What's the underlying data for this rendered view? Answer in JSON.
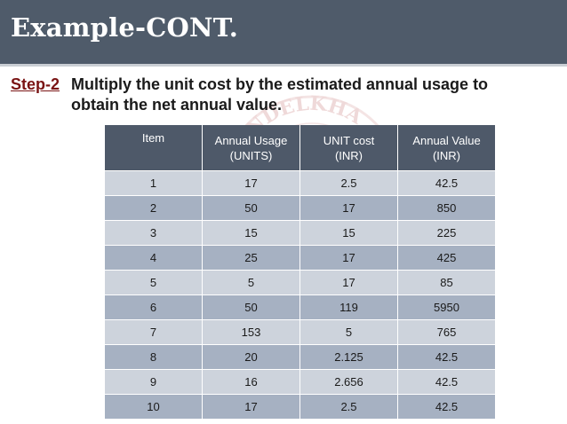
{
  "slide": {
    "title": "Example-CONT.",
    "step_label": "Step-2",
    "step_text_line1": "Multiply the unit cost by the estimated annual usage to",
    "step_text_line2": "obtain the net annual value."
  },
  "watermark": {
    "text": "BUNDELKHA"
  },
  "table": {
    "headers": [
      {
        "line1": "Item",
        "line2": ""
      },
      {
        "line1": "Annual Usage",
        "line2": "(UNITS)"
      },
      {
        "line1": "UNIT cost",
        "line2": "(INR)"
      },
      {
        "line1": "Annual Value",
        "line2": "(INR)"
      }
    ],
    "rows": [
      [
        "1",
        "17",
        "2.5",
        "42.5"
      ],
      [
        "2",
        "50",
        "17",
        "850"
      ],
      [
        "3",
        "15",
        "15",
        "225"
      ],
      [
        "4",
        "25",
        "17",
        "425"
      ],
      [
        "5",
        "5",
        "17",
        "85"
      ],
      [
        "6",
        "50",
        "119",
        "5950"
      ],
      [
        "7",
        "153",
        "5",
        "765"
      ],
      [
        "8",
        "20",
        "2.125",
        "42.5"
      ],
      [
        "9",
        "16",
        "2.656",
        "42.5"
      ],
      [
        "10",
        "17",
        "2.5",
        "42.5"
      ]
    ]
  },
  "colors": {
    "title_bar": "#4f5b6a",
    "header": "#4e5969",
    "row_light": "#cdd3dc",
    "row_dark": "#a6b1c2",
    "step_label": "#7a1414"
  }
}
